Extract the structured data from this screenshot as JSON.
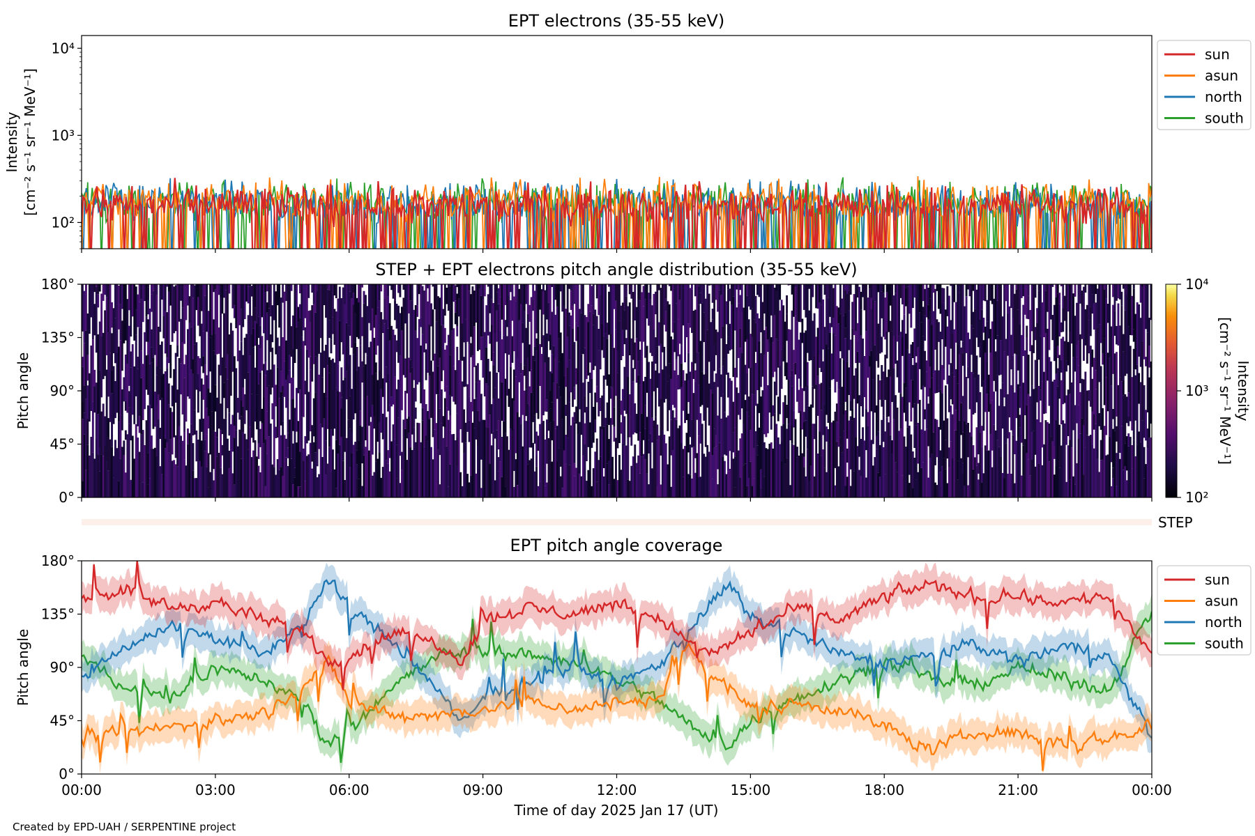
{
  "credit": "Created by EPD-UAH / SERPENTINE project",
  "xlabel": "Time of day 2025 Jan 17 (UT)",
  "x_ticks": [
    "00:00",
    "03:00",
    "06:00",
    "09:00",
    "12:00",
    "15:00",
    "18:00",
    "21:00",
    "00:00"
  ],
  "colors": {
    "sun": "#d62728",
    "asun": "#ff7f0e",
    "north": "#1f77b4",
    "south": "#2ca02c"
  },
  "chart_data": [
    {
      "type": "line",
      "title": "EPT electrons (35-55 keV)",
      "ylabel_line1": "Intensity",
      "ylabel_line2": "[cm⁻² s⁻¹ sr⁻¹ MeV⁻¹]",
      "yscale": "log",
      "ylim": [
        50,
        14000
      ],
      "y_ticks": [
        {
          "value": 10000,
          "label": "10⁴"
        },
        {
          "value": 1000,
          "label": "10³"
        },
        {
          "value": 100,
          "label": "10²"
        }
      ],
      "x_range_hours": [
        0,
        24
      ],
      "legend": {
        "placement": "outside-right-top",
        "entries": [
          "sun",
          "asun",
          "north",
          "south"
        ]
      },
      "series": [
        {
          "name": "sun",
          "color": "#d62728",
          "typical_range": [
            50,
            350
          ],
          "mean": 160
        },
        {
          "name": "asun",
          "color": "#ff7f0e",
          "typical_range": [
            50,
            600
          ],
          "mean": 180
        },
        {
          "name": "north",
          "color": "#1f77b4",
          "typical_range": [
            50,
            450
          ],
          "mean": 170
        },
        {
          "name": "south",
          "color": "#2ca02c",
          "typical_range": [
            50,
            550
          ],
          "mean": 175
        }
      ]
    },
    {
      "type": "heatmap",
      "title": "STEP + EPT electrons pitch angle distribution (35-55 keV)",
      "ylabel": "Pitch angle",
      "ylim": [
        0,
        180
      ],
      "y_ticks": [
        "0°",
        "45°",
        "90°",
        "135°",
        "180°"
      ],
      "colorbar": {
        "label_line1": "Intensity",
        "label_line2": "[cm⁻² s⁻¹ sr⁻¹ MeV⁻¹]",
        "scale": "log",
        "range": [
          100,
          10000
        ],
        "ticks": [
          "10²",
          "10³",
          "10⁴"
        ],
        "colormap": "inferno"
      },
      "typical_intensity": [
        100,
        400
      ]
    },
    {
      "type": "heatmap",
      "label": "STEP",
      "note": "single thin band strip below the pitch angle distribution"
    },
    {
      "type": "line",
      "title": "EPT pitch angle coverage",
      "ylabel": "Pitch angle",
      "ylim": [
        0,
        180
      ],
      "y_ticks": [
        "0°",
        "45°",
        "90°",
        "135°",
        "180°"
      ],
      "x_range_hours": [
        0,
        24
      ],
      "legend": {
        "placement": "outside-right-top",
        "entries": [
          "sun",
          "asun",
          "north",
          "south"
        ]
      },
      "series": [
        {
          "name": "sun",
          "color": "#d62728",
          "keypoints": [
            [
              0,
              150
            ],
            [
              1,
              155
            ],
            [
              2,
              140
            ],
            [
              3,
              145
            ],
            [
              4,
              130
            ],
            [
              5,
              120
            ],
            [
              5.5,
              95
            ],
            [
              6,
              100
            ],
            [
              7,
              120
            ],
            [
              8,
              110
            ],
            [
              8.5,
              95
            ],
            [
              9,
              130
            ],
            [
              10,
              140
            ],
            [
              11,
              135
            ],
            [
              12,
              145
            ],
            [
              13,
              130
            ],
            [
              14,
              100
            ],
            [
              15,
              120
            ],
            [
              16,
              140
            ],
            [
              17,
              130
            ],
            [
              18,
              150
            ],
            [
              19,
              160
            ],
            [
              20,
              150
            ],
            [
              21,
              150
            ],
            [
              22,
              145
            ],
            [
              23,
              150
            ],
            [
              24,
              100
            ]
          ]
        },
        {
          "name": "asun",
          "color": "#ff7f0e",
          "keypoints": [
            [
              0,
              30
            ],
            [
              1,
              35
            ],
            [
              2,
              40
            ],
            [
              3,
              45
            ],
            [
              4,
              50
            ],
            [
              5,
              75
            ],
            [
              5.5,
              95
            ],
            [
              6,
              60
            ],
            [
              7,
              50
            ],
            [
              8,
              50
            ],
            [
              9,
              55
            ],
            [
              10,
              60
            ],
            [
              11,
              55
            ],
            [
              12,
              60
            ],
            [
              13,
              65
            ],
            [
              13.5,
              110
            ],
            [
              14,
              90
            ],
            [
              15,
              55
            ],
            [
              16,
              60
            ],
            [
              17,
              55
            ],
            [
              18,
              40
            ],
            [
              19,
              20
            ],
            [
              20,
              35
            ],
            [
              21,
              35
            ],
            [
              22,
              25
            ],
            [
              23,
              30
            ],
            [
              24,
              40
            ]
          ]
        },
        {
          "name": "north",
          "color": "#1f77b4",
          "keypoints": [
            [
              0,
              80
            ],
            [
              1,
              110
            ],
            [
              2,
              125
            ],
            [
              3,
              115
            ],
            [
              4,
              100
            ],
            [
              5,
              130
            ],
            [
              5.5,
              165
            ],
            [
              6,
              140
            ],
            [
              7,
              110
            ],
            [
              8,
              70
            ],
            [
              8.5,
              40
            ],
            [
              9,
              65
            ],
            [
              10,
              80
            ],
            [
              11,
              90
            ],
            [
              12,
              75
            ],
            [
              13,
              95
            ],
            [
              14,
              140
            ],
            [
              14.5,
              160
            ],
            [
              15,
              130
            ],
            [
              16,
              120
            ],
            [
              17,
              100
            ],
            [
              18,
              95
            ],
            [
              19,
              100
            ],
            [
              20,
              110
            ],
            [
              21,
              95
            ],
            [
              22,
              110
            ],
            [
              23,
              100
            ],
            [
              24,
              30
            ]
          ]
        },
        {
          "name": "south",
          "color": "#2ca02c",
          "keypoints": [
            [
              0,
              100
            ],
            [
              1,
              70
            ],
            [
              2,
              65
            ],
            [
              3,
              90
            ],
            [
              4,
              80
            ],
            [
              5,
              60
            ],
            [
              5.5,
              25
            ],
            [
              6,
              40
            ],
            [
              7,
              75
            ],
            [
              8,
              100
            ],
            [
              9,
              105
            ],
            [
              10,
              100
            ],
            [
              11,
              95
            ],
            [
              12,
              80
            ],
            [
              13,
              60
            ],
            [
              14,
              30
            ],
            [
              14.5,
              25
            ],
            [
              15,
              45
            ],
            [
              16,
              65
            ],
            [
              17,
              80
            ],
            [
              18,
              95
            ],
            [
              19,
              80
            ],
            [
              20,
              75
            ],
            [
              21,
              90
            ],
            [
              22,
              80
            ],
            [
              23,
              70
            ],
            [
              24,
              140
            ]
          ]
        }
      ]
    }
  ]
}
